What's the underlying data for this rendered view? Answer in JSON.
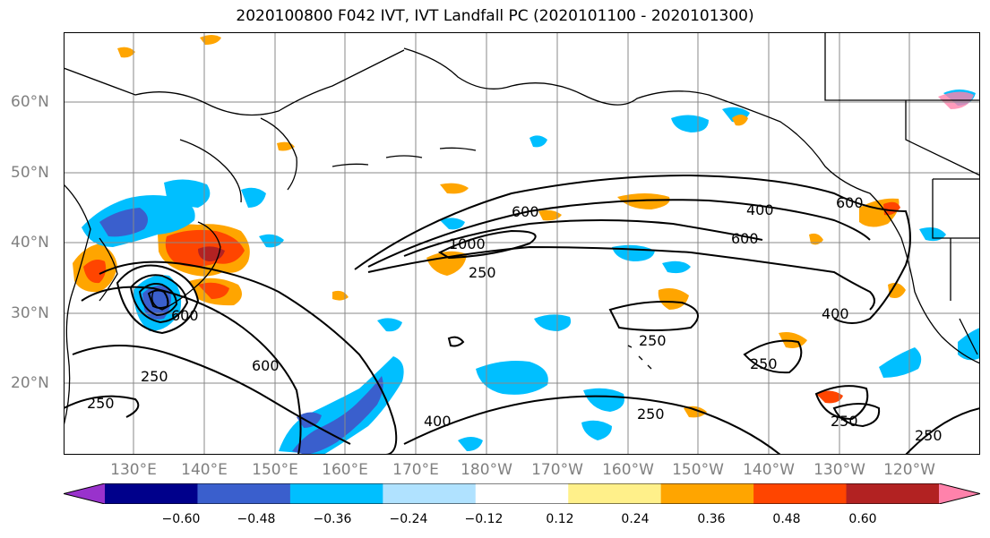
{
  "title": "2020100800 F042 IVT, IVT Landfall PC (2020101100 - 2020101300)",
  "map": {
    "lat_labels": [
      "60°N",
      "50°N",
      "40°N",
      "30°N",
      "20°N"
    ],
    "lon_labels": [
      "130°E",
      "140°E",
      "150°E",
      "160°E",
      "170°E",
      "180°W",
      "170°W",
      "160°W",
      "150°W",
      "140°W",
      "130°W",
      "120°W"
    ],
    "contour_labels": [
      "600",
      "400",
      "600",
      "600",
      "1000",
      "250",
      "400",
      "250",
      "250",
      "250",
      "250",
      "600",
      "250",
      "400",
      "600",
      "250",
      "250"
    ],
    "fill_colors": {
      "neg": [
        "#9932cc",
        "#00008b",
        "#3a5fcd",
        "#00bfff",
        "#b0e2ff"
      ],
      "pos": [
        "#fff08a",
        "#ffa500",
        "#ff4500",
        "#b22222",
        "#ff82ab"
      ]
    }
  },
  "colorbar": {
    "ticks": [
      "−0.60",
      "−0.48",
      "−0.36",
      "−0.24",
      "−0.12",
      "0.12",
      "0.24",
      "0.36",
      "0.48",
      "0.60"
    ],
    "colors": [
      "#9932cc",
      "#00008b",
      "#3a5fcd",
      "#00bfff",
      "#b0e2ff",
      "#ffffff",
      "#fff08a",
      "#ffa500",
      "#ff4500",
      "#b22222",
      "#ff82ab"
    ]
  }
}
